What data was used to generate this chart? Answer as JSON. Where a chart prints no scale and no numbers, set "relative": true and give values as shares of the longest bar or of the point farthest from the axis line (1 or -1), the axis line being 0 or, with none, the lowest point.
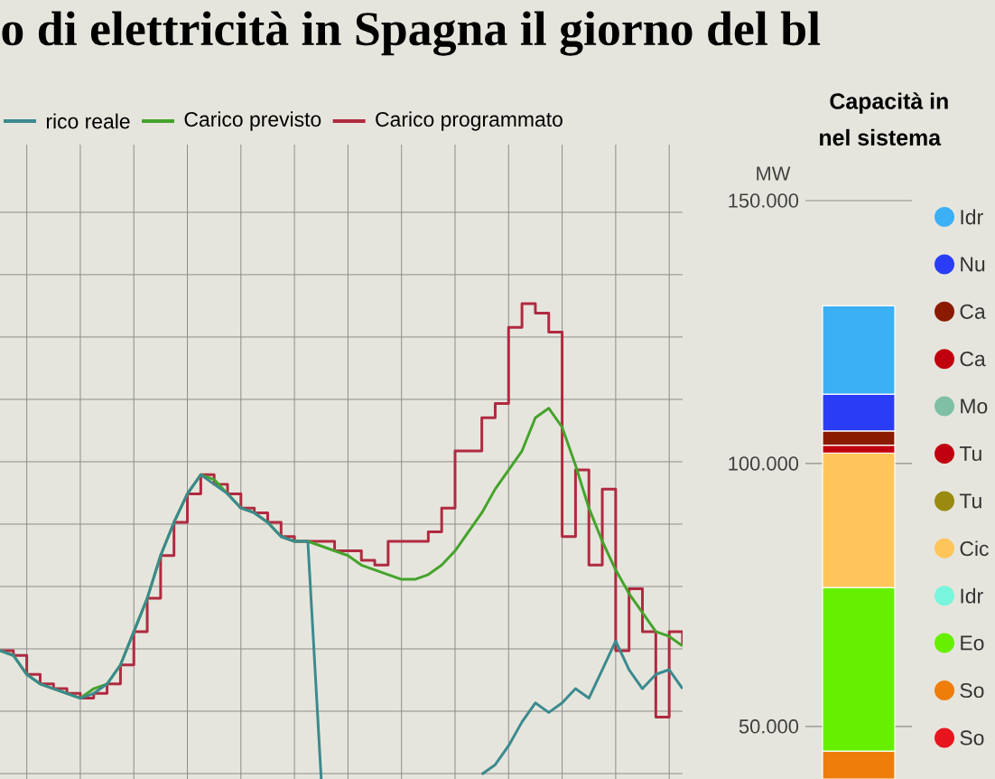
{
  "chart_data": [
    {
      "type": "line",
      "title": "o di elettricità in Spagna il giorno del bl",
      "relative": true,
      "grid": true,
      "legend": "top",
      "categories": [
        null,
        null,
        null,
        null,
        null,
        null,
        null,
        null,
        null,
        null,
        null,
        null,
        null,
        null,
        null,
        null,
        null,
        null,
        null,
        null,
        null,
        null,
        null,
        null,
        null,
        null,
        null,
        null,
        null,
        null,
        null,
        null,
        null,
        null,
        null,
        null,
        null,
        null,
        null,
        null,
        null,
        null,
        null,
        null,
        null,
        null,
        null,
        null,
        null,
        null,
        null,
        null
      ],
      "series": [
        {
          "name": "rico reale",
          "color": "#3b8a8e",
          "values": [
            0.27,
            0.26,
            0.22,
            0.2,
            0.19,
            0.18,
            0.17,
            0.18,
            0.2,
            0.24,
            0.31,
            0.38,
            0.47,
            0.54,
            0.6,
            0.64,
            0.62,
            0.6,
            0.57,
            0.56,
            0.54,
            0.51,
            0.5,
            0.5,
            0,
            null,
            null,
            null,
            null,
            null,
            null,
            null,
            null,
            null,
            null,
            null,
            0.01,
            0.03,
            0.07,
            0.12,
            0.16,
            0.14,
            0.16,
            0.19,
            0.17,
            0.23,
            0.29,
            0.23,
            0.19,
            0.22,
            0.23,
            0.19
          ]
        },
        {
          "name": "Carico previsto",
          "color": "#45a32b",
          "values": [
            0.27,
            0.26,
            0.22,
            0.2,
            0.19,
            0.18,
            0.17,
            0.19,
            0.2,
            0.24,
            0.31,
            0.38,
            0.47,
            0.54,
            0.6,
            0.64,
            0.63,
            0.6,
            0.57,
            0.56,
            0.54,
            0.51,
            0.5,
            0.5,
            0.49,
            0.48,
            0.47,
            0.45,
            0.44,
            0.43,
            0.42,
            0.42,
            0.43,
            0.45,
            0.48,
            0.52,
            0.56,
            0.61,
            0.65,
            0.69,
            0.76,
            0.78,
            0.74,
            0.66,
            0.57,
            0.5,
            0.44,
            0.39,
            0.35,
            0.31,
            0.3,
            0.28
          ]
        },
        {
          "name": "Carico programmato",
          "type": "step",
          "color": "#b02a40",
          "values": [
            0.27,
            0.26,
            0.22,
            0.2,
            0.19,
            0.18,
            0.17,
            0.18,
            0.2,
            0.24,
            0.31,
            0.38,
            0.47,
            0.54,
            0.6,
            0.64,
            0.62,
            0.6,
            0.57,
            0.56,
            0.54,
            0.51,
            0.5,
            0.5,
            0.5,
            0.48,
            0.48,
            0.46,
            0.45,
            0.5,
            0.5,
            0.5,
            0.52,
            0.57,
            0.69,
            0.69,
            0.76,
            0.79,
            0.95,
            1,
            0.98,
            0.94,
            0.51,
            0.65,
            0.45,
            0.61,
            0.27,
            0.4,
            0.31,
            0.13,
            0.31,
            0.28
          ]
        }
      ]
    },
    {
      "type": "bar",
      "title": "Capacità in",
      "subtitle": "nel sistema",
      "ylabel": "MW",
      "categories": [
        null
      ],
      "ylim": [
        40000,
        150000
      ],
      "yticks": [
        {
          "value": 50000,
          "label": "50.000"
        },
        {
          "value": 100000,
          "label": "100.000"
        },
        {
          "value": 150000,
          "label": "150.000"
        }
      ],
      "grid": "y",
      "legend": "right",
      "series": [
        {
          "name": "So",
          "color": "#e8141e",
          "values": [
            null
          ]
        },
        {
          "name": "So",
          "color": "#ee7d0a",
          "values": [
            5300
          ],
          "base": [
            40000
          ]
        },
        {
          "name": "Eo",
          "color": "#66f000",
          "values": [
            31100
          ],
          "base": [
            45300
          ]
        },
        {
          "name": "Idr",
          "color": "#78f5dc",
          "values": [
            null
          ]
        },
        {
          "name": "Cic",
          "color": "#fdc55a",
          "values": [
            25600
          ],
          "base": [
            76400
          ]
        },
        {
          "name": "Tu",
          "color": "#9a8a10",
          "values": [
            null
          ]
        },
        {
          "name": "Tu",
          "color": "#c00010",
          "values": [
            null
          ]
        },
        {
          "name": "Mo",
          "color": "#7fbfa5",
          "values": [
            null
          ]
        },
        {
          "name": "Ca",
          "color": "#c0000e",
          "values": [
            1500
          ],
          "base": [
            102000
          ]
        },
        {
          "name": "Ca",
          "color": "#8a1a00",
          "values": [
            2700
          ],
          "base": [
            103500
          ]
        },
        {
          "name": "Nu",
          "color": "#2a3cf5",
          "values": [
            7000
          ],
          "base": [
            106200
          ]
        },
        {
          "name": "Idr",
          "color": "#3bb0f5",
          "values": [
            16800
          ],
          "base": [
            113200
          ]
        }
      ]
    }
  ]
}
